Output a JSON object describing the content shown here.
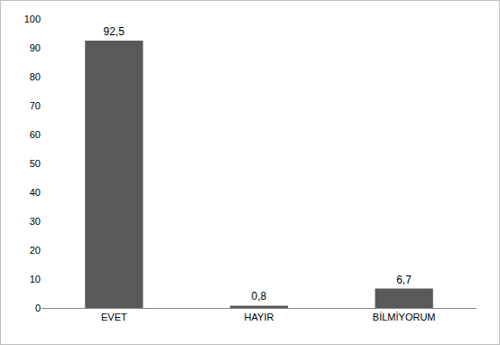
{
  "chart_data": {
    "type": "bar",
    "categories": [
      "EVET",
      "HAYIR",
      "BİLMİYORUM"
    ],
    "values": [
      92.5,
      0.8,
      6.7
    ],
    "value_labels": [
      "92,5",
      "0,8",
      "6,7"
    ],
    "data_labels": true,
    "color": "#595959",
    "ylim": [
      0,
      100
    ],
    "yticks": [
      0,
      10,
      20,
      30,
      40,
      50,
      60,
      70,
      80,
      90,
      100
    ],
    "grid": false
  }
}
